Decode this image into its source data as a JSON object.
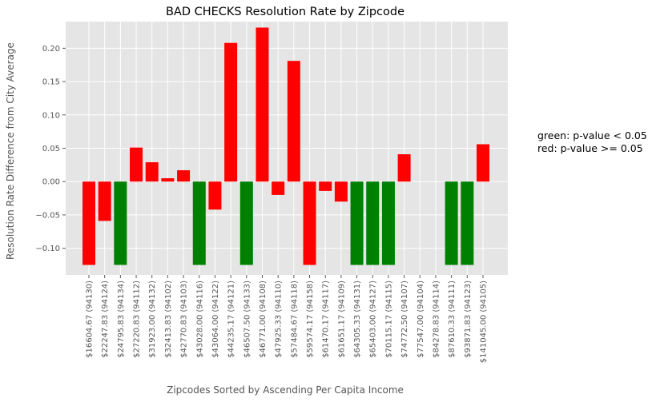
{
  "chart_data": {
    "type": "bar",
    "title": "BAD CHECKS Resolution Rate by Zipcode",
    "xlabel": "Zipcodes Sorted by Ascending Per Capita Income",
    "ylabel": "Resolution Rate Difference from City Average",
    "ylim": [
      -0.14,
      0.24
    ],
    "yticks": [
      -0.1,
      -0.05,
      0.0,
      0.05,
      0.1,
      0.15,
      0.2
    ],
    "ytick_labels": [
      "−0.10",
      "−0.05",
      "0.00",
      "0.05",
      "0.10",
      "0.15",
      "0.20"
    ],
    "grid": true,
    "colors": {
      "significant": "#008000",
      "not_significant": "#ff0000",
      "background": "#e5e5e5",
      "grid": "#ffffff"
    },
    "categories": [
      "$16604.67 (94130)",
      "$22247.83 (94124)",
      "$24795.83 (94134)",
      "$27220.83 (94112)",
      "$31923.00 (94132)",
      "$32413.83 (94102)",
      "$42770.83 (94103)",
      "$43028.00 (94116)",
      "$43064.00 (94122)",
      "$44235.17 (94121)",
      "$46507.50 (94133)",
      "$46771.00 (94108)",
      "$47925.33 (94110)",
      "$57484.67 (94118)",
      "$59574.17 (94158)",
      "$61470.17 (94117)",
      "$61651.17 (94109)",
      "$64305.33 (94131)",
      "$65403.00 (94127)",
      "$70115.17 (94115)",
      "$74772.50 (94107)",
      "$77547.00 (94104)",
      "$84278.83 (94114)",
      "$87610.33 (94111)",
      "$93871.83 (94123)",
      "$141045.00 (94105)"
    ],
    "values": [
      -0.125,
      -0.059,
      -0.125,
      0.051,
      0.029,
      0.005,
      0.017,
      -0.125,
      -0.042,
      0.208,
      -0.125,
      0.231,
      -0.02,
      0.181,
      -0.125,
      -0.014,
      -0.03,
      -0.125,
      -0.125,
      -0.125,
      0.041,
      0,
      0,
      -0.125,
      -0.125,
      0.056
    ],
    "significant": [
      false,
      false,
      true,
      false,
      false,
      false,
      false,
      true,
      false,
      false,
      true,
      false,
      false,
      false,
      false,
      false,
      false,
      true,
      true,
      true,
      false,
      false,
      false,
      true,
      true,
      false
    ],
    "annotations": [
      "green: p-value < 0.05",
      "red: p-value >= 0.05"
    ]
  }
}
